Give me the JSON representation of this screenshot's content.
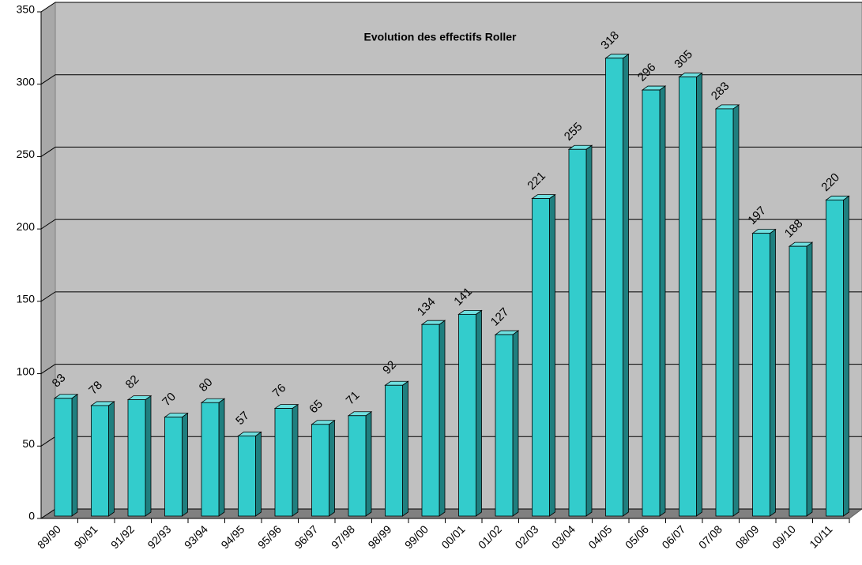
{
  "chart_data": {
    "type": "bar",
    "title": "Evolution des effectifs Roller",
    "categories": [
      "89/90",
      "90/91",
      "91/92",
      "92/93",
      "93/94",
      "94/95",
      "95/96",
      "96/97",
      "97/98",
      "98/99",
      "99/00",
      "00/01",
      "01/02",
      "02/03",
      "03/04",
      "04/05",
      "05/06",
      "06/07",
      "07/08",
      "08/09",
      "09/10",
      "10/11"
    ],
    "values": [
      83,
      78,
      82,
      70,
      80,
      57,
      76,
      65,
      71,
      92,
      134,
      141,
      127,
      221,
      255,
      318,
      296,
      305,
      283,
      197,
      188,
      220
    ],
    "color": "#33cccc",
    "ylim": [
      0,
      350
    ],
    "yticks": [
      0,
      50,
      100,
      150,
      200,
      250,
      300,
      350
    ],
    "grid": true
  }
}
